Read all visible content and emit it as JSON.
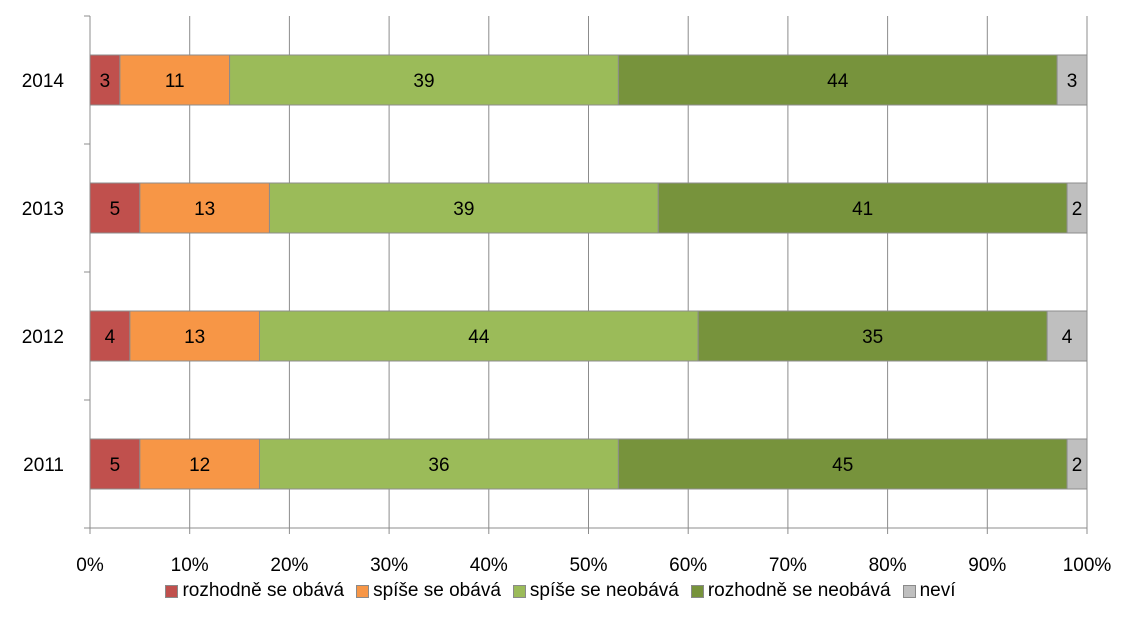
{
  "chart_data": {
    "type": "bar",
    "orientation": "horizontal",
    "stacked": "percent",
    "categories": [
      "2014",
      "2013",
      "2012",
      "2011"
    ],
    "series": [
      {
        "name": "rozhodně se obává",
        "color": "#c0504d",
        "values": [
          3,
          5,
          4,
          5
        ]
      },
      {
        "name": "spíše se obává",
        "color": "#f79646",
        "values": [
          11,
          13,
          13,
          12
        ]
      },
      {
        "name": "spíše se neobává",
        "color": "#9bbb59",
        "values": [
          39,
          39,
          44,
          36
        ]
      },
      {
        "name": "rozhodně se neobává",
        "color": "#77933c",
        "values": [
          44,
          41,
          35,
          45
        ]
      },
      {
        "name": "neví",
        "color": "#bfbfbf",
        "values": [
          3,
          2,
          4,
          2
        ]
      }
    ],
    "x_ticks": [
      "0%",
      "10%",
      "20%",
      "30%",
      "40%",
      "50%",
      "60%",
      "70%",
      "80%",
      "90%",
      "100%"
    ],
    "xlim": [
      0,
      100
    ],
    "grid": true,
    "legend_position": "bottom",
    "title": "",
    "xlabel": "",
    "ylabel": ""
  }
}
